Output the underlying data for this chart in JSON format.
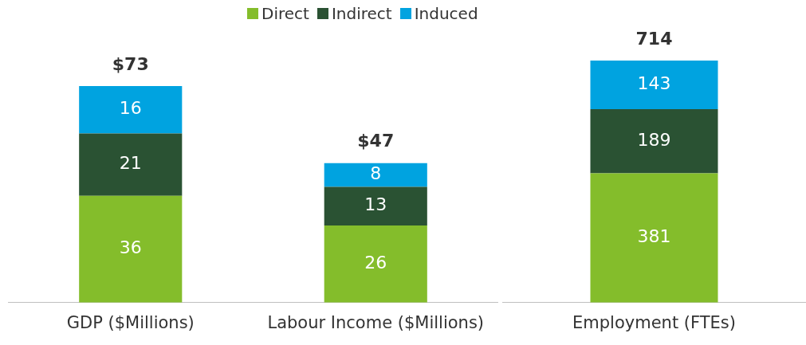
{
  "chart_data": [
    {
      "type": "bar",
      "stacked": true,
      "categories": [
        "GDP ($Millions)",
        "Labour Income ($Millions)"
      ],
      "series": [
        {
          "name": "Direct",
          "color": "#84bd2b",
          "values": [
            36,
            26
          ]
        },
        {
          "name": "Indirect",
          "color": "#2a5233",
          "values": [
            21,
            13
          ]
        },
        {
          "name": "Induced",
          "color": "#00a3e0",
          "values": [
            16,
            8
          ]
        }
      ],
      "data_labels": true,
      "totals": [
        "$73",
        "$47"
      ],
      "legend": "top",
      "grid": false
    },
    {
      "type": "bar",
      "stacked": true,
      "categories": [
        "Employment (FTEs)"
      ],
      "series": [
        {
          "color": "#84bd2b",
          "values": [
            381
          ]
        },
        {
          "color": "#2a5233",
          "values": [
            189
          ]
        },
        {
          "color": "#00a3e0",
          "values": [
            143
          ]
        }
      ],
      "data_labels": true,
      "totals": [
        "714"
      ],
      "grid": false
    }
  ]
}
